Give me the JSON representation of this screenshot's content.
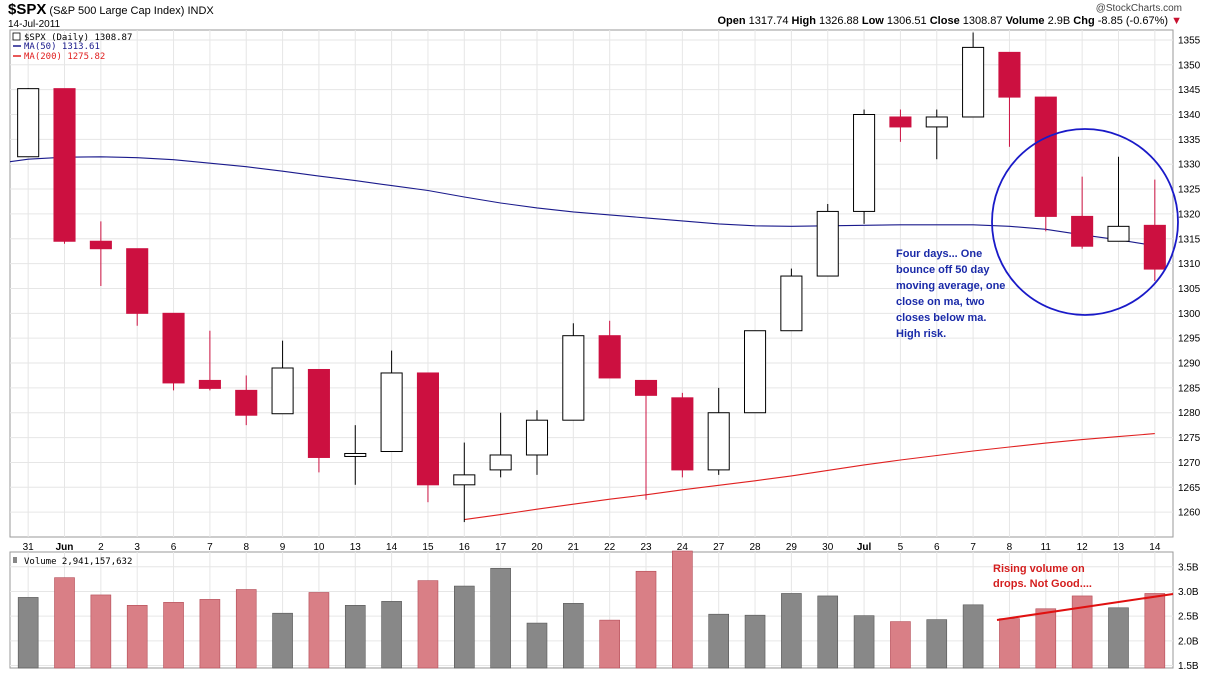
{
  "header": {
    "ticker": "$SPX",
    "name": "(S&P 500 Large Cap Index)",
    "exchange": "INDX",
    "date": "14-Jul-2011",
    "credit": "@StockCharts.com",
    "open_label": "Open",
    "open": "1317.74",
    "high_label": "High",
    "high": "1326.88",
    "low_label": "Low",
    "low": "1306.51",
    "close_label": "Close",
    "close": "1308.87",
    "volume_label": "Volume",
    "volume": "2.9B",
    "chg_label": "Chg",
    "chg": "-8.85 (-0.67%)",
    "chg_icon": "down-triangle-icon"
  },
  "legend": {
    "price": "$SPX (Daily) 1308.87",
    "ma50": "MA(50) 1313.61",
    "ma200": "MA(200) 1275.82",
    "volume": "Volume 2,941,157,632"
  },
  "colors": {
    "down": "#cc1040",
    "up": "#ffffff",
    "outline": "#000000",
    "ma50": "#1a1a8c",
    "ma200": "#e02020",
    "vol_down": "#d97f86",
    "vol_up": "#888888",
    "circle": "#1a1ac8"
  },
  "annotations": {
    "circle_note": [
      "Four days... One",
      "bounce off 50 day",
      "moving average, one",
      "close on  ma, two",
      "closes below ma.",
      "High risk."
    ],
    "volume_note": [
      "Rising volume on",
      "drops. Not Good...."
    ]
  },
  "chart_data": {
    "type": "candlestick",
    "categories": [
      "31",
      "Jun",
      "2",
      "3",
      "6",
      "7",
      "8",
      "9",
      "10",
      "13",
      "14",
      "15",
      "16",
      "17",
      "20",
      "21",
      "22",
      "23",
      "24",
      "27",
      "28",
      "29",
      "30",
      "Jul",
      "5",
      "6",
      "7",
      "8",
      "11",
      "12",
      "13",
      "14"
    ],
    "ohlc": [
      {
        "o": 1331.5,
        "h": 1345.3,
        "l": 1331.5,
        "c": 1345.2
      },
      {
        "o": 1345.2,
        "h": 1345.2,
        "l": 1314.0,
        "c": 1314.5
      },
      {
        "o": 1314.5,
        "h": 1318.5,
        "l": 1305.5,
        "c": 1313.0
      },
      {
        "o": 1313.0,
        "h": 1313.0,
        "l": 1297.5,
        "c": 1300.0
      },
      {
        "o": 1300.0,
        "h": 1300.0,
        "l": 1284.5,
        "c": 1286.0
      },
      {
        "o": 1286.5,
        "h": 1296.5,
        "l": 1284.5,
        "c": 1284.9
      },
      {
        "o": 1284.5,
        "h": 1287.5,
        "l": 1277.5,
        "c": 1279.5
      },
      {
        "o": 1279.8,
        "h": 1294.5,
        "l": 1279.8,
        "c": 1289.0
      },
      {
        "o": 1288.7,
        "h": 1288.7,
        "l": 1268.0,
        "c": 1271.0
      },
      {
        "o": 1271.2,
        "h": 1277.5,
        "l": 1265.5,
        "c": 1271.8
      },
      {
        "o": 1272.2,
        "h": 1292.5,
        "l": 1272.2,
        "c": 1288.0
      },
      {
        "o": 1288.0,
        "h": 1288.0,
        "l": 1262.0,
        "c": 1265.5
      },
      {
        "o": 1265.5,
        "h": 1274.0,
        "l": 1258.0,
        "c": 1267.5
      },
      {
        "o": 1268.5,
        "h": 1280.0,
        "l": 1267.0,
        "c": 1271.5
      },
      {
        "o": 1271.5,
        "h": 1280.5,
        "l": 1267.5,
        "c": 1278.5
      },
      {
        "o": 1278.5,
        "h": 1298.0,
        "l": 1278.5,
        "c": 1295.5
      },
      {
        "o": 1295.5,
        "h": 1298.5,
        "l": 1287.0,
        "c": 1287.0
      },
      {
        "o": 1286.5,
        "h": 1286.5,
        "l": 1262.5,
        "c": 1283.5
      },
      {
        "o": 1283.0,
        "h": 1284.0,
        "l": 1267.0,
        "c": 1268.5
      },
      {
        "o": 1268.5,
        "h": 1285.0,
        "l": 1267.5,
        "c": 1280.0
      },
      {
        "o": 1280.0,
        "h": 1296.5,
        "l": 1280.0,
        "c": 1296.5
      },
      {
        "o": 1296.5,
        "h": 1309.0,
        "l": 1296.5,
        "c": 1307.5
      },
      {
        "o": 1307.5,
        "h": 1322.0,
        "l": 1307.5,
        "c": 1320.5
      },
      {
        "o": 1320.5,
        "h": 1341.0,
        "l": 1318.0,
        "c": 1340.0
      },
      {
        "o": 1339.5,
        "h": 1341.0,
        "l": 1334.5,
        "c": 1337.5
      },
      {
        "o": 1337.5,
        "h": 1341.0,
        "l": 1331.0,
        "c": 1339.5
      },
      {
        "o": 1339.5,
        "h": 1356.5,
        "l": 1339.5,
        "c": 1353.5
      },
      {
        "o": 1352.5,
        "h": 1352.5,
        "l": 1333.5,
        "c": 1343.5
      },
      {
        "o": 1343.5,
        "h": 1343.5,
        "l": 1316.5,
        "c": 1319.5
      },
      {
        "o": 1319.5,
        "h": 1327.5,
        "l": 1313.0,
        "c": 1313.5
      },
      {
        "o": 1314.5,
        "h": 1331.5,
        "l": 1314.5,
        "c": 1317.5
      },
      {
        "o": 1317.7,
        "h": 1326.9,
        "l": 1306.5,
        "c": 1308.9
      }
    ],
    "volume": [
      2.88,
      3.28,
      2.93,
      2.72,
      2.78,
      2.84,
      3.04,
      2.56,
      2.98,
      2.72,
      2.8,
      3.22,
      3.11,
      3.47,
      2.36,
      2.76,
      2.42,
      3.41,
      3.82,
      2.54,
      2.52,
      2.96,
      2.91,
      2.51,
      2.39,
      2.43,
      2.73,
      2.45,
      2.65,
      2.91,
      2.67,
      2.96
    ],
    "ma50": [
      1331.0,
      1331.4,
      1331.5,
      1331.3,
      1330.9,
      1330.2,
      1329.5,
      1328.6,
      1327.6,
      1326.7,
      1325.7,
      1324.7,
      1323.4,
      1322.2,
      1321.2,
      1320.4,
      1319.8,
      1319.2,
      1318.6,
      1318.0,
      1317.6,
      1317.5,
      1317.6,
      1317.7,
      1317.8,
      1317.8,
      1317.8,
      1317.5,
      1316.9,
      1315.8,
      1314.8,
      1313.6
    ],
    "ma200": [
      null,
      null,
      null,
      null,
      null,
      null,
      null,
      null,
      null,
      null,
      null,
      null,
      1258.5,
      1259.5,
      1260.6,
      1261.6,
      1262.6,
      1263.5,
      1264.5,
      1265.4,
      1266.3,
      1267.3,
      1268.4,
      1269.5,
      1270.5,
      1271.4,
      1272.3,
      1273.1,
      1273.9,
      1274.6,
      1275.2,
      1275.8
    ],
    "ylim": [
      1255,
      1357
    ],
    "yticks": [
      1260,
      1265,
      1270,
      1275,
      1280,
      1285,
      1290,
      1295,
      1300,
      1305,
      1310,
      1315,
      1320,
      1325,
      1330,
      1335,
      1340,
      1345,
      1350,
      1355
    ],
    "vol_ylim": [
      1.45,
      3.8
    ],
    "vol_ticks": [
      {
        "v": 1.5,
        "label": "1.5B"
      },
      {
        "v": 2.0,
        "label": "2.0B"
      },
      {
        "v": 2.5,
        "label": "2.5B"
      },
      {
        "v": 3.0,
        "label": "3.0B"
      },
      {
        "v": 3.5,
        "label": "3.5B"
      }
    ],
    "grid": true
  }
}
